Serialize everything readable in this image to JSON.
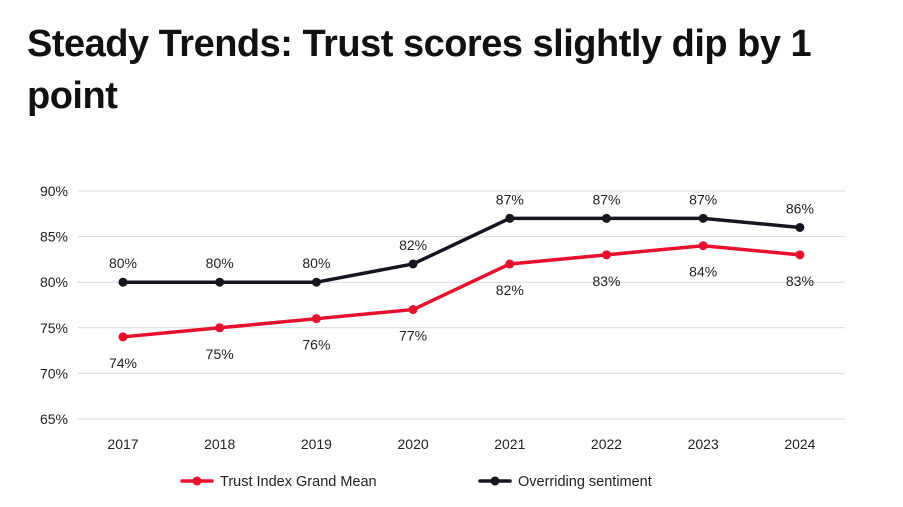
{
  "title": "Steady Trends: Trust scores slightly dip by 1 point",
  "chart_data": {
    "type": "line",
    "title": "Steady Trends: Trust scores slightly dip by 1 point",
    "xlabel": "",
    "ylabel": "",
    "categories": [
      "2017",
      "2018",
      "2019",
      "2020",
      "2021",
      "2022",
      "2023",
      "2024"
    ],
    "yticks": [
      "65%",
      "70%",
      "75%",
      "80%",
      "85%",
      "90%"
    ],
    "ylim": [
      65,
      90
    ],
    "grid": true,
    "legend_position": "bottom",
    "series": [
      {
        "name": "Trust Index Grand Mean",
        "color": "#e8112d",
        "values": [
          74,
          75,
          76,
          77,
          82,
          83,
          84,
          83
        ],
        "labels": [
          "74%",
          "75%",
          "76%",
          "77%",
          "82%",
          "83%",
          "84%",
          "83%"
        ]
      },
      {
        "name": "Overriding sentiment",
        "color": "#16161e",
        "values": [
          80,
          80,
          80,
          82,
          87,
          87,
          87,
          86
        ],
        "labels": [
          "80%",
          "80%",
          "80%",
          "82%",
          "87%",
          "87%",
          "87%",
          "86%"
        ]
      }
    ]
  }
}
